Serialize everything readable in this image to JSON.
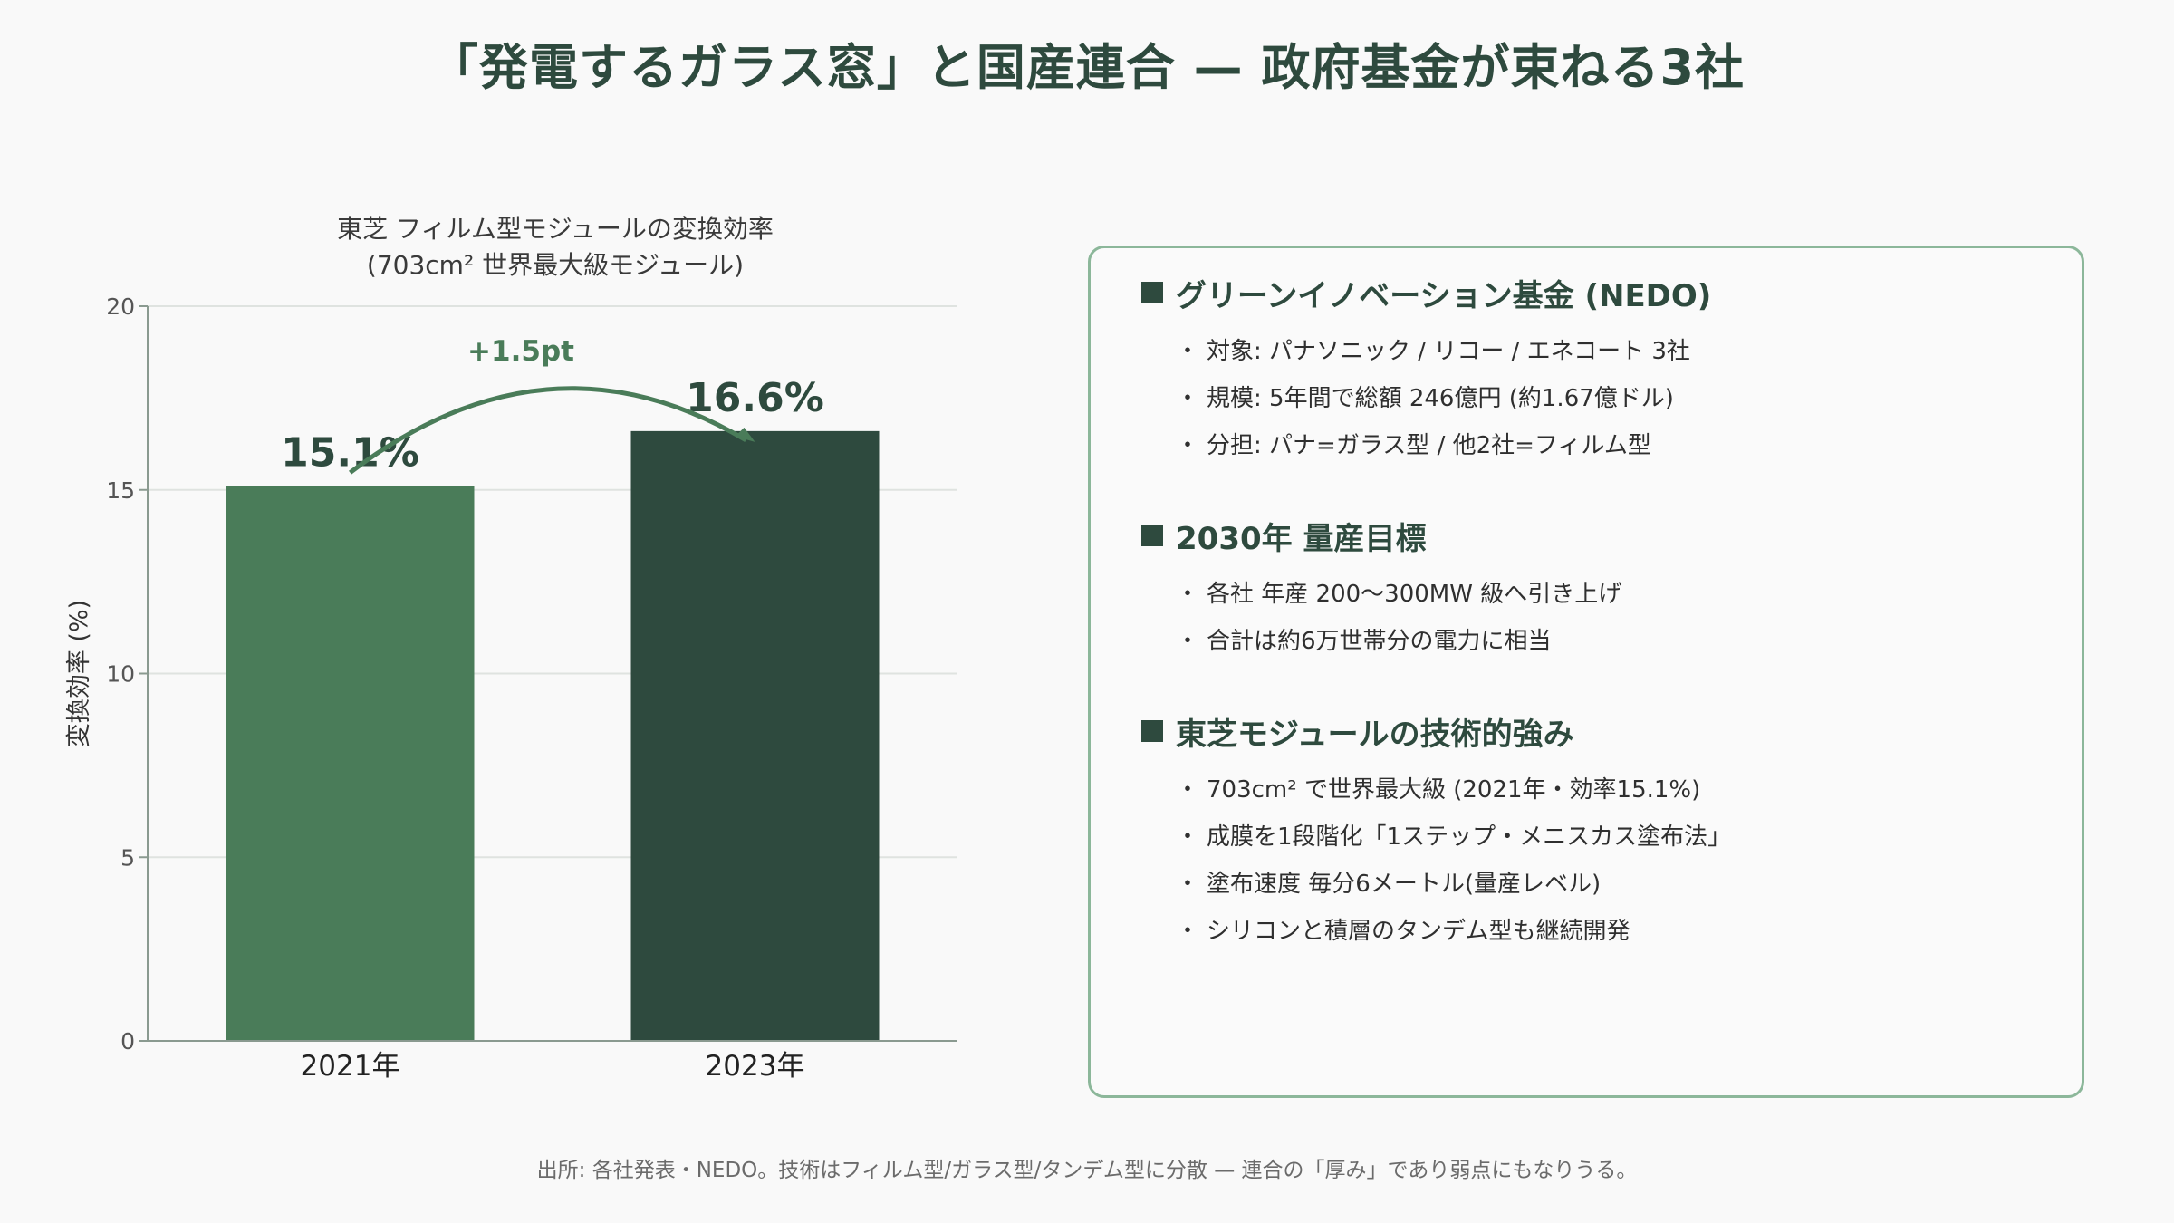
{
  "title": "「発電するガラス窓」と国産連合 — 政府基金が束ねる3社",
  "chart_data": {
    "type": "bar",
    "title": "東芝 フィルム型モジュールの変換効率",
    "subtitle": "(703cm² 世界最大級モジュール)",
    "categories": [
      "2021年",
      "2023年"
    ],
    "values": [
      15.1,
      16.6
    ],
    "value_labels": [
      "15.1%",
      "16.6%"
    ],
    "ylabel": "変換効率 (%)",
    "xlabel": "",
    "ylim": [
      0,
      20
    ],
    "yticks": [
      0,
      5,
      10,
      15,
      20
    ],
    "grid": true,
    "bar_colors": [
      "#4a7c59",
      "#2e4a3e"
    ],
    "annotation": {
      "text": "+1.5pt",
      "color": "#4a7c59"
    }
  },
  "panel": {
    "sections": [
      {
        "heading": "グリーンイノベーション基金 (NEDO)",
        "items": [
          "対象: パナソニック / リコー / エネコート 3社",
          "規模: 5年間で総額 246億円 (約1.67億ドル)",
          "分担: パナ=ガラス型 / 他2社=フィルム型"
        ]
      },
      {
        "heading": "2030年 量産目標",
        "items": [
          "各社 年産 200〜300MW 級へ引き上げ",
          "合計は約6万世帯分の電力に相当"
        ]
      },
      {
        "heading": "東芝モジュールの技術的強み",
        "items": [
          "703cm² で世界最大級 (2021年・効率15.1%)",
          "成膜を1段階化「1ステップ・メニスカス塗布法」",
          "塗布速度 毎分6メートル(量産レベル)",
          "シリコンと積層のタンデム型も継続開発"
        ]
      }
    ],
    "bullet_char": "・"
  },
  "footnote": "出所: 各社発表・NEDO。技術はフィルム型/ガラス型/タンデム型に分散 — 連合の「厚み」であり弱点にもなりうる。",
  "colors": {
    "accent_dark": "#2e4a3e",
    "accent_light": "#4a7c59",
    "panel_border": "#8cb79a"
  }
}
